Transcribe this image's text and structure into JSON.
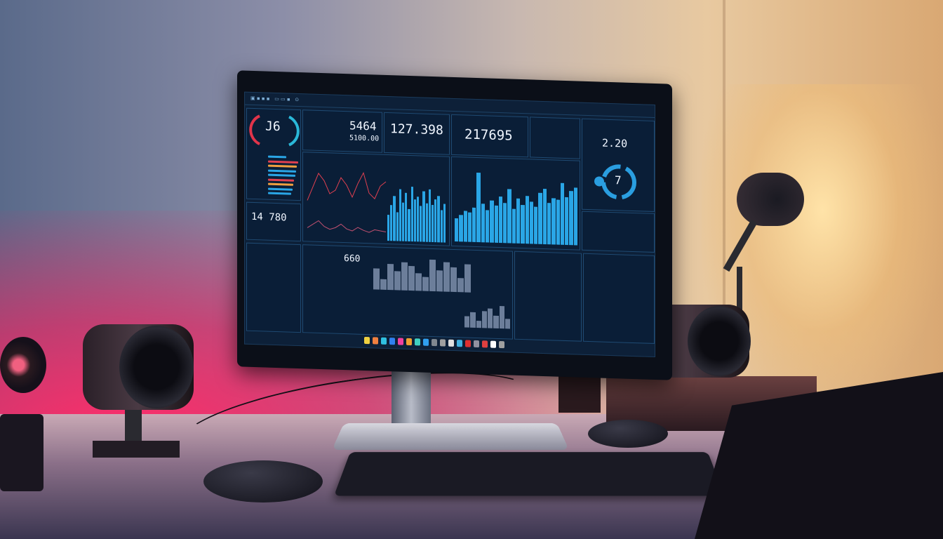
{
  "scene": {
    "accent": "#ff2d6a",
    "lamp": "#ffe3a8",
    "screen_bg": "#0d2038"
  },
  "dashboard": {
    "gauge": {
      "value": "J6",
      "colors": [
        "#e0344a",
        "#2ab8d8"
      ]
    },
    "kpi1": {
      "value": "5464",
      "sub": "5100.00"
    },
    "kpi2": {
      "value": "127.398"
    },
    "kpi3": {
      "value": "217695"
    },
    "side_kpi": {
      "value": "2.20"
    },
    "cycle_badge": {
      "value": "7"
    },
    "kpi4": {
      "value": "14  780"
    },
    "kpi5": {
      "value": "660"
    },
    "dock_icons": [
      "#f0d040",
      "#f08040",
      "#30c0e0",
      "#3080f0",
      "#f040a0",
      "#f0a030",
      "#40d0c0",
      "#30a0f0",
      "#808890",
      "#a0a0a0",
      "#e0e0e0",
      "#40b0e0",
      "#e03030",
      "#9090a0",
      "#e04040",
      "#ffffff",
      "#a0a0a0"
    ]
  },
  "chart_data": [
    {
      "type": "line",
      "name_hint": "",
      "series": [
        {
          "values": [
            40,
            55,
            70,
            62,
            48,
            52,
            66,
            58,
            45,
            60,
            72,
            50,
            44,
            58,
            63
          ]
        },
        {
          "values": [
            10,
            14,
            18,
            12,
            9,
            11,
            15,
            10,
            8,
            12,
            9,
            7,
            10,
            9,
            8
          ]
        }
      ]
    },
    {
      "type": "bar",
      "values": [
        40,
        55,
        70,
        45,
        80,
        60,
        75,
        50,
        85,
        65,
        70,
        55,
        78,
        60,
        82,
        58,
        66,
        72,
        50,
        60
      ]
    },
    {
      "type": "bar",
      "values": [
        30,
        35,
        40,
        38,
        45,
        90,
        50,
        42,
        55,
        48,
        60,
        52,
        70,
        45,
        58,
        50,
        62,
        55,
        48,
        66,
        72,
        54,
        60,
        58,
        80,
        62,
        70,
        75
      ]
    },
    {
      "type": "bar",
      "values": [
        60,
        30,
        75,
        55,
        80,
        70,
        50,
        40,
        90,
        60,
        85,
        70,
        40,
        80
      ]
    },
    {
      "type": "bar",
      "values": [
        40,
        55,
        25,
        60,
        70,
        45,
        80,
        35
      ]
    }
  ]
}
